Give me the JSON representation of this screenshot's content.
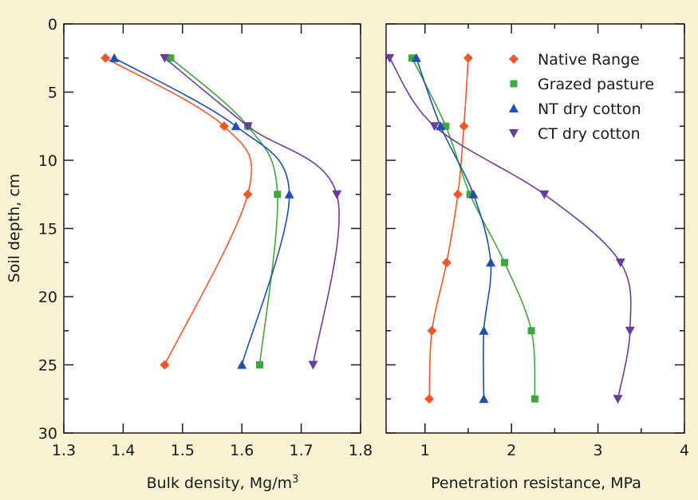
{
  "colors": {
    "background": "#f9f3d4",
    "native_range": "#f0582a",
    "grazed_pasture": "#3ea83e",
    "nt_dry_cotton": "#1f4fb0",
    "ct_dry_cotton": "#6a3c9c"
  },
  "chart_data": [
    {
      "type": "line",
      "panel": "left",
      "xlabel_main": "Bulk density, Mg/m",
      "xlabel_sup": "3",
      "ylabel": "Soil depth, cm",
      "xlim": [
        1.3,
        1.8
      ],
      "ylim": [
        0,
        30
      ],
      "y_inverted": true,
      "x_ticks": [
        "1.3",
        "1.4",
        "1.5",
        "1.6",
        "1.7",
        "1.8"
      ],
      "y_ticks": [
        "0",
        "5",
        "10",
        "15",
        "20",
        "25",
        "30"
      ],
      "series": [
        {
          "name": "Native Range",
          "marker": "diamond",
          "color_key": "native_range",
          "points": [
            [
              1.37,
              2.5
            ],
            [
              1.57,
              7.5
            ],
            [
              1.61,
              12.5
            ],
            [
              1.47,
              25
            ]
          ]
        },
        {
          "name": "Grazed pasture",
          "marker": "square",
          "color_key": "grazed_pasture",
          "points": [
            [
              1.48,
              2.5
            ],
            [
              1.61,
              7.5
            ],
            [
              1.66,
              12.5
            ],
            [
              1.63,
              25
            ]
          ]
        },
        {
          "name": "NT dry cotton",
          "marker": "triangle-up",
          "color_key": "nt_dry_cotton",
          "points": [
            [
              1.385,
              2.5
            ],
            [
              1.59,
              7.5
            ],
            [
              1.68,
              12.5
            ],
            [
              1.6,
              25
            ]
          ]
        },
        {
          "name": "CT dry cotton",
          "marker": "triangle-down",
          "color_key": "ct_dry_cotton",
          "points": [
            [
              1.47,
              2.5
            ],
            [
              1.61,
              7.5
            ],
            [
              1.76,
              12.5
            ],
            [
              1.72,
              25
            ]
          ]
        }
      ]
    },
    {
      "type": "line",
      "panel": "right",
      "xlabel": "Penetration resistance, MPa",
      "xlim": [
        0.55,
        4.0
      ],
      "ylim": [
        0,
        30
      ],
      "y_inverted": true,
      "x_ticks": [
        1,
        2,
        3,
        4
      ],
      "legend_position": "top-right",
      "series": [
        {
          "name": "Native Range",
          "marker": "diamond",
          "color_key": "native_range",
          "points": [
            [
              1.5,
              2.5
            ],
            [
              1.45,
              7.5
            ],
            [
              1.38,
              12.5
            ],
            [
              1.25,
              17.5
            ],
            [
              1.08,
              22.5
            ],
            [
              1.05,
              27.5
            ]
          ]
        },
        {
          "name": "Grazed pasture",
          "marker": "square",
          "color_key": "grazed_pasture",
          "points": [
            [
              0.85,
              2.5
            ],
            [
              1.24,
              7.5
            ],
            [
              1.52,
              12.5
            ],
            [
              1.92,
              17.5
            ],
            [
              2.23,
              22.5
            ],
            [
              2.27,
              27.5
            ]
          ]
        },
        {
          "name": "NT dry cotton",
          "marker": "triangle-up",
          "color_key": "nt_dry_cotton",
          "points": [
            [
              0.9,
              2.5
            ],
            [
              1.18,
              7.5
            ],
            [
              1.56,
              12.5
            ],
            [
              1.76,
              17.5
            ],
            [
              1.68,
              22.5
            ],
            [
              1.68,
              27.5
            ]
          ]
        },
        {
          "name": "CT dry cotton",
          "marker": "triangle-down",
          "color_key": "ct_dry_cotton",
          "points": [
            [
              0.59,
              2.5
            ],
            [
              1.11,
              7.5
            ],
            [
              2.38,
              12.5
            ],
            [
              3.26,
              17.5
            ],
            [
              3.37,
              22.5
            ],
            [
              3.23,
              27.5
            ]
          ]
        }
      ]
    }
  ]
}
